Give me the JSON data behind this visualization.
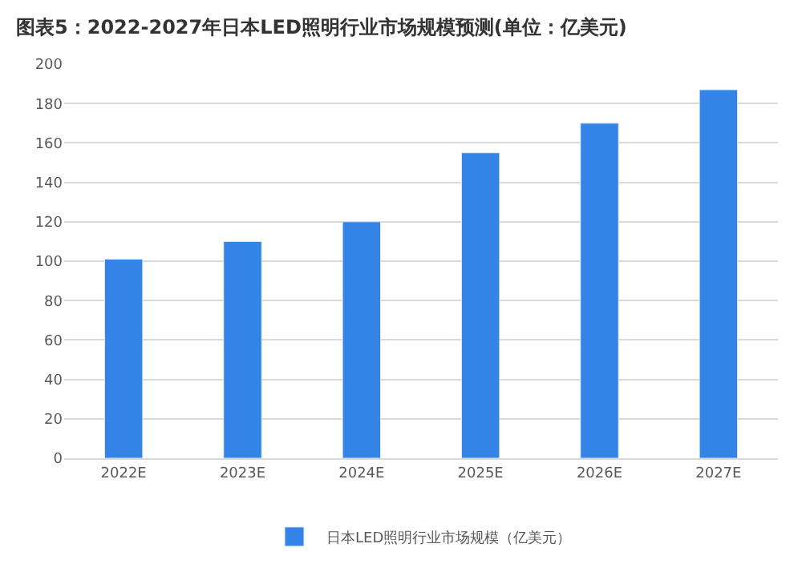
{
  "chart_data": {
    "type": "bar",
    "title": "图表5：2022-2027年日本LED照明行业市场规模预测(单位：亿美元)",
    "categories": [
      "2022E",
      "2023E",
      "2024E",
      "2025E",
      "2026E",
      "2027E"
    ],
    "series": [
      {
        "name": "日本LED照明行业市场规模（亿美元）",
        "color": "#3384e6",
        "values": [
          101,
          110,
          120,
          155,
          170,
          187
        ]
      }
    ],
    "ylim": [
      0,
      200
    ],
    "yticks": [
      0,
      20,
      40,
      60,
      80,
      100,
      120,
      140,
      160,
      180,
      200
    ],
    "grid": "y",
    "legend": "bottom"
  }
}
